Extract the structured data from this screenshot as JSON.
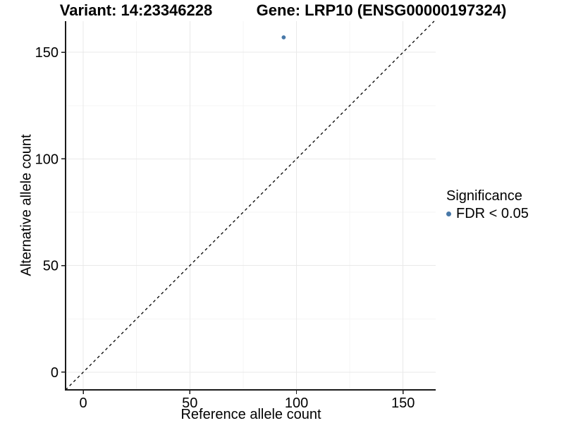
{
  "titles": {
    "variant": "Variant: 14:23346228",
    "gene": "Gene: LRP10 (ENSG00000197324)"
  },
  "axes": {
    "x_label": "Reference allele count",
    "y_label": "Alternative allele count"
  },
  "legend": {
    "title": "Significance",
    "items": [
      {
        "label": "FDR < 0.05",
        "color": "#4878A8"
      }
    ]
  },
  "colors": {
    "point": "#4878A8",
    "grid_major": "#e9e9e9",
    "grid_minor": "#f4f4f4",
    "axis_line": "#1a1a1a",
    "identity_line": "#000000",
    "background": "#ffffff"
  },
  "chart_data": {
    "type": "scatter",
    "title": "Variant: 14:23346228   Gene: LRP10 (ENSG00000197324)",
    "xlabel": "Reference allele count",
    "ylabel": "Alternative allele count",
    "xlim": [
      -8.3,
      165.3
    ],
    "ylim": [
      -8.3,
      164.6
    ],
    "x_ticks": [
      0,
      50,
      100,
      150
    ],
    "y_ticks": [
      0,
      50,
      100,
      150
    ],
    "x_minor_ticks": [
      25,
      75,
      125
    ],
    "y_minor_ticks": [
      25,
      75,
      125
    ],
    "grid": true,
    "legend_position": "right",
    "series": [
      {
        "name": "FDR < 0.05",
        "color": "#4878A8",
        "points": [
          {
            "x": 94,
            "y": 157
          }
        ]
      }
    ],
    "reference_line": {
      "slope": 1,
      "intercept": 0,
      "style": "dashed",
      "color": "#000000",
      "note": "y = x identity line"
    }
  }
}
